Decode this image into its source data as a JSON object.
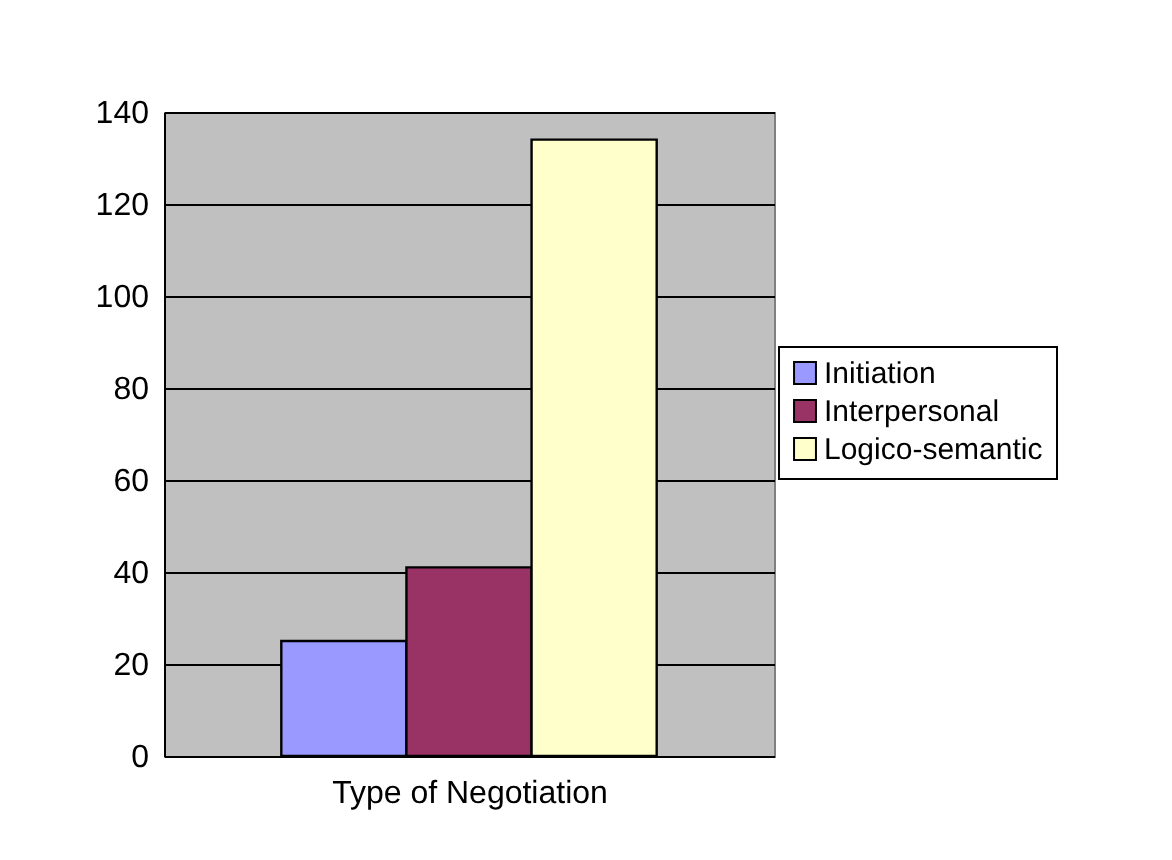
{
  "chart_data": {
    "type": "bar",
    "categories": [
      null
    ],
    "xlabel": "Type of Negotiation",
    "series": [
      {
        "name": "Initiation",
        "color": "#9999ff",
        "values": [
          25
        ]
      },
      {
        "name": "Interpersonal",
        "color": "#993366",
        "values": [
          41
        ]
      },
      {
        "name": "Logico-semantic",
        "color": "#ffffcc",
        "values": [
          134
        ]
      }
    ],
    "ylim": [
      0,
      140
    ],
    "yticks": [
      0,
      20,
      40,
      60,
      80,
      100,
      120,
      140
    ],
    "grid": "y",
    "legend": "right"
  }
}
